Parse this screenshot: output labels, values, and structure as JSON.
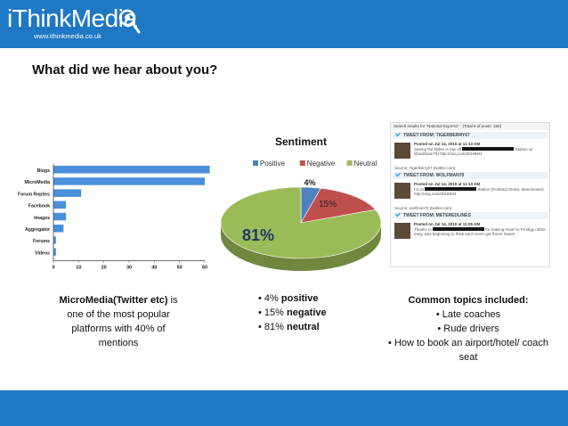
{
  "brand": {
    "name": "iThinkMedia",
    "url": "www.ithinkmedia.co.uk",
    "colors": {
      "bar": "#1f78c4",
      "accent": "#2e8dd6"
    }
  },
  "heading": "What did we hear about you?",
  "bar_chart": {
    "chart_data": {
      "type": "bar",
      "orientation": "horizontal",
      "categories": [
        "Blogs",
        "MicroMedia",
        "Forum Replies",
        "Facebook",
        "Images",
        "Aggregator",
        "Forums",
        "Videos"
      ],
      "values": [
        62,
        60,
        11,
        5,
        5,
        4,
        1,
        1
      ],
      "xlim": [
        0,
        60
      ],
      "xticks": [
        "0",
        "10",
        "20",
        "30",
        "40",
        "50",
        "60"
      ],
      "color": "#4a8fdc"
    }
  },
  "sentiment_chart": {
    "title": "Sentiment",
    "chart_data": {
      "type": "pie",
      "title": "Sentiment",
      "legend_position": "top",
      "series": [
        {
          "name": "Positive",
          "value": 4,
          "label": "4%",
          "color": "#4f81bd"
        },
        {
          "name": "Negative",
          "value": 15,
          "label": "15%",
          "color": "#c0504d"
        },
        {
          "name": "Neutral",
          "value": 81,
          "label": "81%",
          "color": "#9bbb59"
        }
      ]
    }
  },
  "captions": {
    "left": {
      "bold": "MicroMedia(Twitter etc)",
      "rest": " is one of the most popular platforms with 40% of mentions"
    },
    "middle": [
      {
        "plain": "4% ",
        "bold": "positive"
      },
      {
        "plain": "15% ",
        "bold": "negative"
      },
      {
        "plain": "81% ",
        "bold": "neutral"
      }
    ],
    "right": {
      "title": "Common topics included:",
      "items": [
        "Late coaches",
        "Rude drivers",
        "How to book an airport/hotel/ coach seat"
      ]
    }
  },
  "tweets": {
    "search_header": "Search results for \"National Express\" - (Total 8 of posts: 150)",
    "items": [
      {
        "from": "TWEET FROM: TIGERBERRY67",
        "posted": "Posted on Jul 14, 2010 at 11:13 AM",
        "text_before": "Seeing the father in law off",
        "text_after": "Station w/ @wolfman70) http://4sq.com/dSHBM4",
        "source": "Source: TigerBerry67 (twitter.com)"
      },
      {
        "from": "TWEET FROM: WOLFMAN70",
        "posted": "Posted on Jul 14, 2010 at 11:13 AM",
        "text_before": "I'm at",
        "text_after": "Station (Portland Street, Manchester). http://4sq.com/dSHBM4",
        "source": "Source: wolfman70 (twitter.com)"
      },
      {
        "from": "TWEET FROM: METEREDLINES",
        "posted": "Posted on Jul 14, 2010 at 11:05 AM",
        "text_before": "Thanks to",
        "text_after": "for making travel to Prodigy rather easy, was beginning to think we'd never get there! Sweet",
        "source": ""
      }
    ]
  }
}
